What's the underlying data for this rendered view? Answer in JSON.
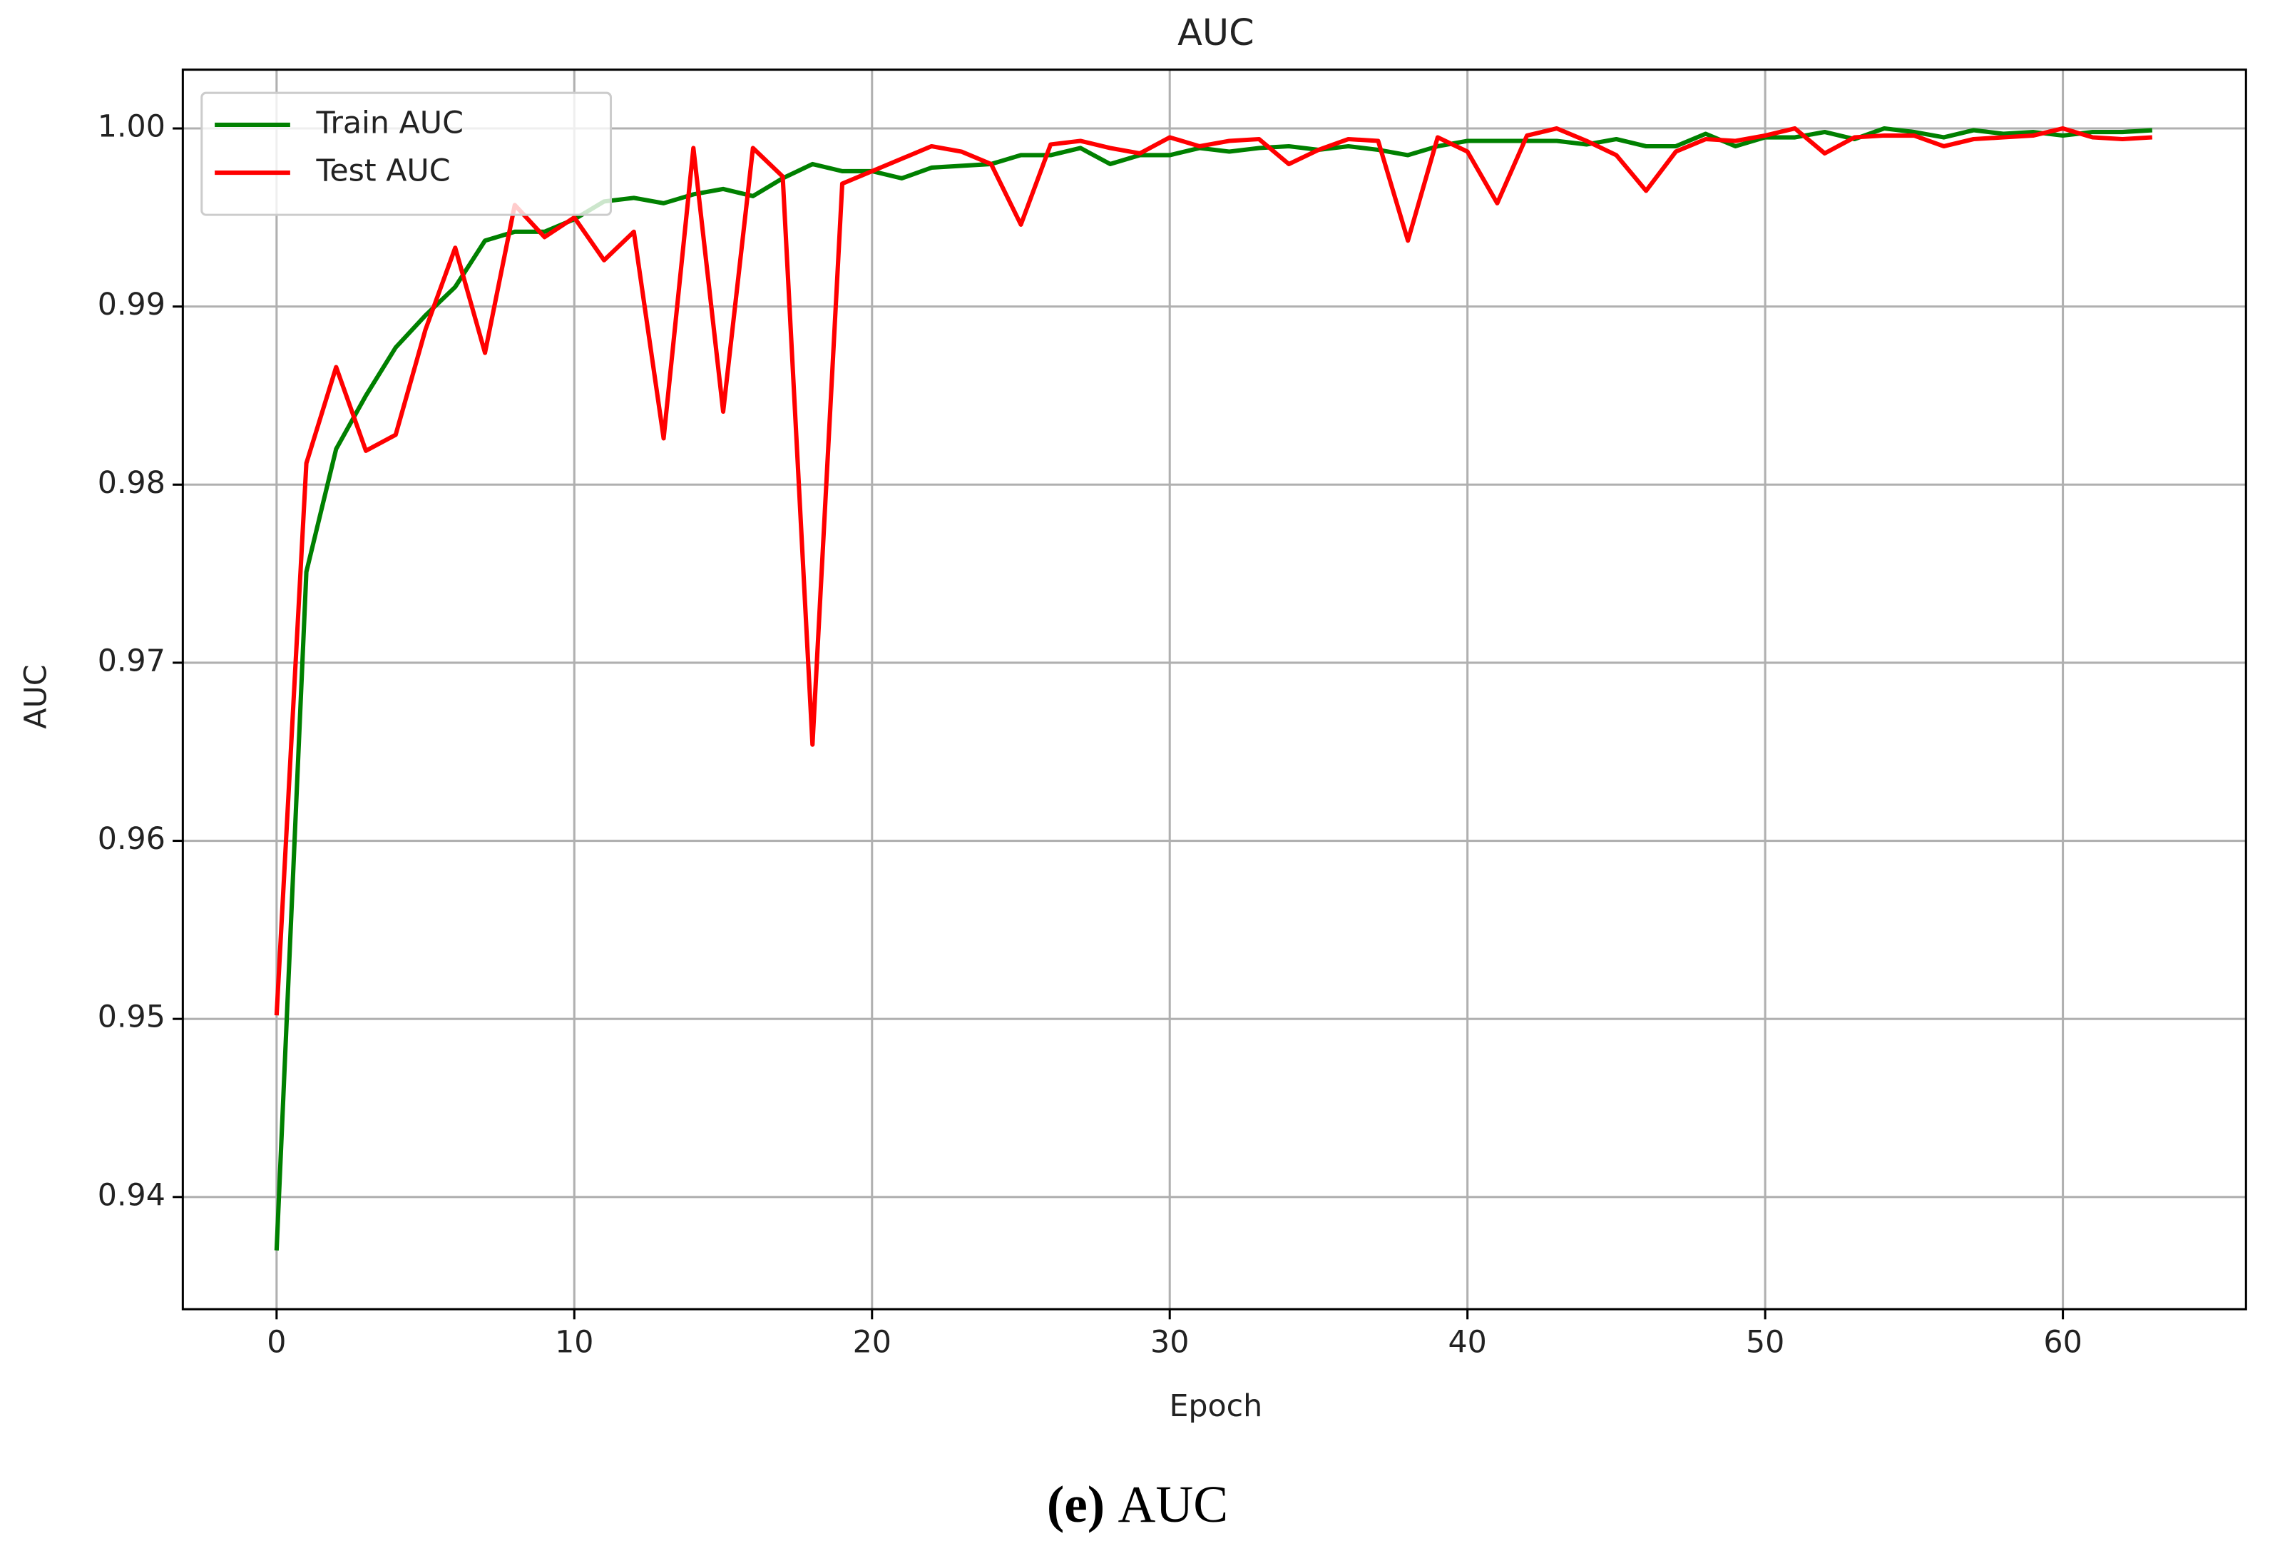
{
  "chart_data": {
    "type": "line",
    "title": "AUC",
    "xlabel": "Epoch",
    "ylabel": "AUC",
    "x": [
      0,
      1,
      2,
      3,
      4,
      5,
      6,
      7,
      8,
      9,
      10,
      11,
      12,
      13,
      14,
      15,
      16,
      17,
      18,
      19,
      20,
      21,
      22,
      23,
      24,
      25,
      26,
      27,
      28,
      29,
      30,
      31,
      32,
      33,
      34,
      35,
      36,
      37,
      38,
      39,
      40,
      41,
      42,
      43,
      44,
      45,
      46,
      47,
      48,
      49,
      50,
      51,
      52,
      53,
      54,
      55,
      56,
      57,
      58,
      59,
      60,
      61,
      62,
      63
    ],
    "series": [
      {
        "name": "Train AUC",
        "color": "#008000",
        "values": [
          0.937,
          0.9751,
          0.982,
          0.985,
          0.9877,
          0.9895,
          0.9911,
          0.9937,
          0.9942,
          0.9942,
          0.9949,
          0.9959,
          0.9961,
          0.9958,
          0.9963,
          0.9966,
          0.9962,
          0.9972,
          0.998,
          0.9976,
          0.9976,
          0.9972,
          0.9978,
          0.9979,
          0.998,
          0.9985,
          0.9985,
          0.9989,
          0.998,
          0.9985,
          0.9985,
          0.9989,
          0.9987,
          0.9989,
          0.999,
          0.9988,
          0.999,
          0.9988,
          0.9985,
          0.999,
          0.9993,
          0.9993,
          0.9993,
          0.9993,
          0.9991,
          0.9994,
          0.999,
          0.999,
          0.9997,
          0.999,
          0.9995,
          0.9995,
          0.9998,
          0.9994,
          1.0,
          0.9998,
          0.9995,
          0.9999,
          0.9997,
          0.9998,
          0.9996,
          0.9998,
          0.9998,
          0.9999
        ]
      },
      {
        "name": "Test AUC",
        "color": "#ff0000",
        "values": [
          0.9502,
          0.9812,
          0.9866,
          0.9819,
          0.9828,
          0.9887,
          0.9933,
          0.9874,
          0.9957,
          0.9939,
          0.995,
          0.9926,
          0.9942,
          0.9826,
          0.9989,
          0.9841,
          0.9989,
          0.9973,
          0.9654,
          0.9969,
          0.9976,
          0.9983,
          0.999,
          0.9987,
          0.998,
          0.9946,
          0.9991,
          0.9993,
          0.9989,
          0.9986,
          0.9995,
          0.999,
          0.9993,
          0.9994,
          0.998,
          0.9988,
          0.9994,
          0.9993,
          0.9937,
          0.9995,
          0.9987,
          0.9958,
          0.9996,
          1.0,
          0.9993,
          0.9985,
          0.9965,
          0.9987,
          0.9994,
          0.9993,
          0.9996,
          1.0,
          0.9986,
          0.9995,
          0.9996,
          0.9996,
          0.999,
          0.9994,
          0.9995,
          0.9996,
          1.0,
          0.9995,
          0.9994,
          0.9995
        ]
      }
    ],
    "xlim": [
      -3.15,
      66.15
    ],
    "xticks": [
      0,
      10,
      20,
      30,
      40,
      50,
      60
    ],
    "ylim": [
      0.9337,
      1.0033
    ],
    "yticks": [
      0.94,
      0.95,
      0.96,
      0.97,
      0.98,
      0.99,
      {
        "value": 1,
        "label": "1.00"
      }
    ],
    "grid": true,
    "legend": "upper left"
  },
  "caption": {
    "tag": "(e)",
    "text": "AUC"
  }
}
